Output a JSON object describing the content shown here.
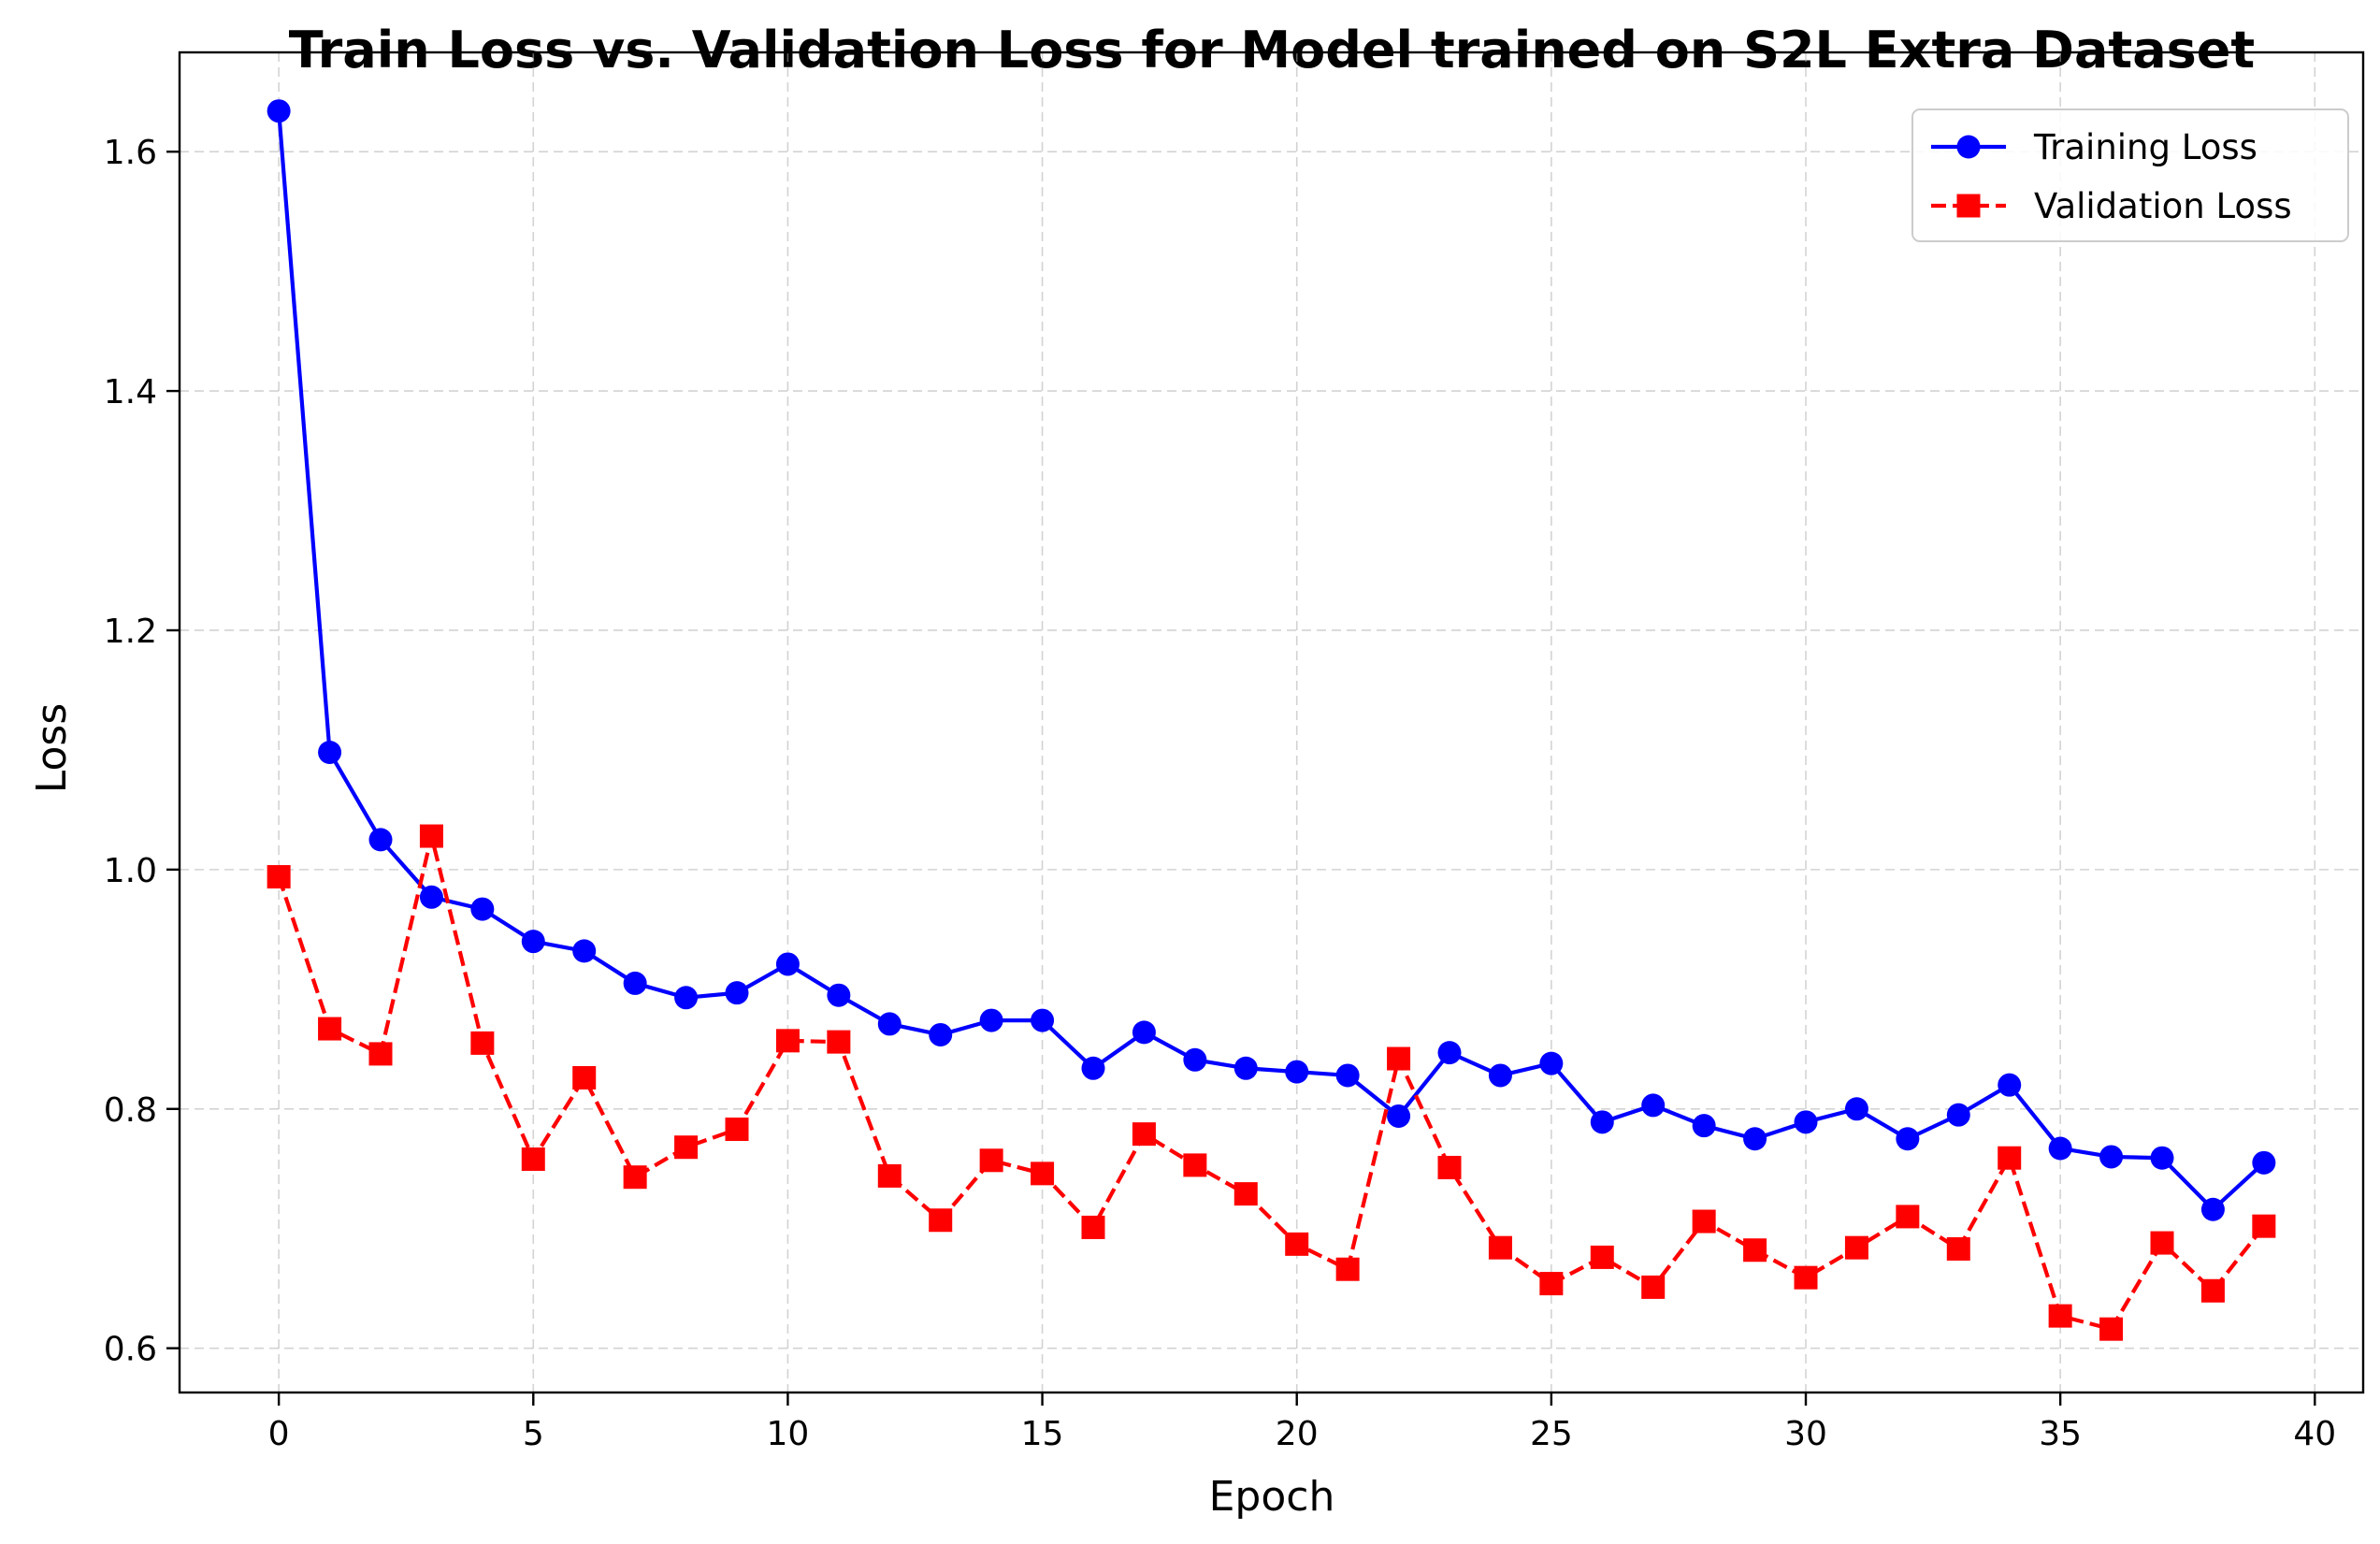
{
  "chart_data": {
    "type": "line",
    "title": "Train Loss vs. Validation Loss for Model trained on S2L Extra Dataset",
    "xlabel": "Epoch",
    "ylabel": "Loss",
    "xlim": [
      -1.95,
      40.95
    ],
    "ylim": [
      0.563,
      1.683
    ],
    "xticks": [
      0,
      5,
      10,
      15,
      20,
      25,
      30,
      35,
      40
    ],
    "xtick_labels": [
      "0",
      "5",
      "10",
      "15",
      "20",
      "25",
      "30",
      "35",
      "40"
    ],
    "yticks": [
      0.6,
      0.8,
      1.0,
      1.2,
      1.4,
      1.6
    ],
    "ytick_labels": [
      "0.6",
      "0.8",
      "1.0",
      "1.2",
      "1.4",
      "1.6"
    ],
    "grid": true,
    "legend_position": "upper-right",
    "x": [
      0,
      1,
      2,
      3,
      4,
      5,
      6,
      7,
      8,
      9,
      10,
      11,
      12,
      13,
      14,
      15,
      16,
      17,
      18,
      19,
      20,
      21,
      22,
      23,
      24,
      25,
      26,
      27,
      28,
      29,
      30,
      31,
      32,
      33,
      34,
      35,
      36,
      37,
      38,
      39
    ],
    "series": [
      {
        "name": "Training Loss",
        "color": "#0000ff",
        "line_style": "solid",
        "marker": "circle",
        "values": [
          1.634,
          1.098,
          1.025,
          0.977,
          0.967,
          0.94,
          0.932,
          0.905,
          0.893,
          0.897,
          0.921,
          0.895,
          0.871,
          0.862,
          0.874,
          0.874,
          0.834,
          0.864,
          0.841,
          0.834,
          0.831,
          0.828,
          0.794,
          0.847,
          0.828,
          0.838,
          0.789,
          0.803,
          0.786,
          0.775,
          0.789,
          0.8,
          0.775,
          0.795,
          0.82,
          0.767,
          0.76,
          0.759,
          0.716,
          0.755
        ]
      },
      {
        "name": "Validation Loss",
        "color": "#ff0000",
        "line_style": "dashed",
        "marker": "square",
        "values": [
          0.994,
          0.867,
          0.846,
          1.028,
          0.855,
          0.758,
          0.826,
          0.743,
          0.768,
          0.783,
          0.857,
          0.856,
          0.744,
          0.707,
          0.757,
          0.746,
          0.701,
          0.779,
          0.753,
          0.729,
          0.687,
          0.666,
          0.842,
          0.751,
          0.684,
          0.654,
          0.676,
          0.651,
          0.706,
          0.682,
          0.659,
          0.684,
          0.71,
          0.683,
          0.759,
          0.627,
          0.616,
          0.688,
          0.648,
          0.702
        ]
      }
    ]
  }
}
